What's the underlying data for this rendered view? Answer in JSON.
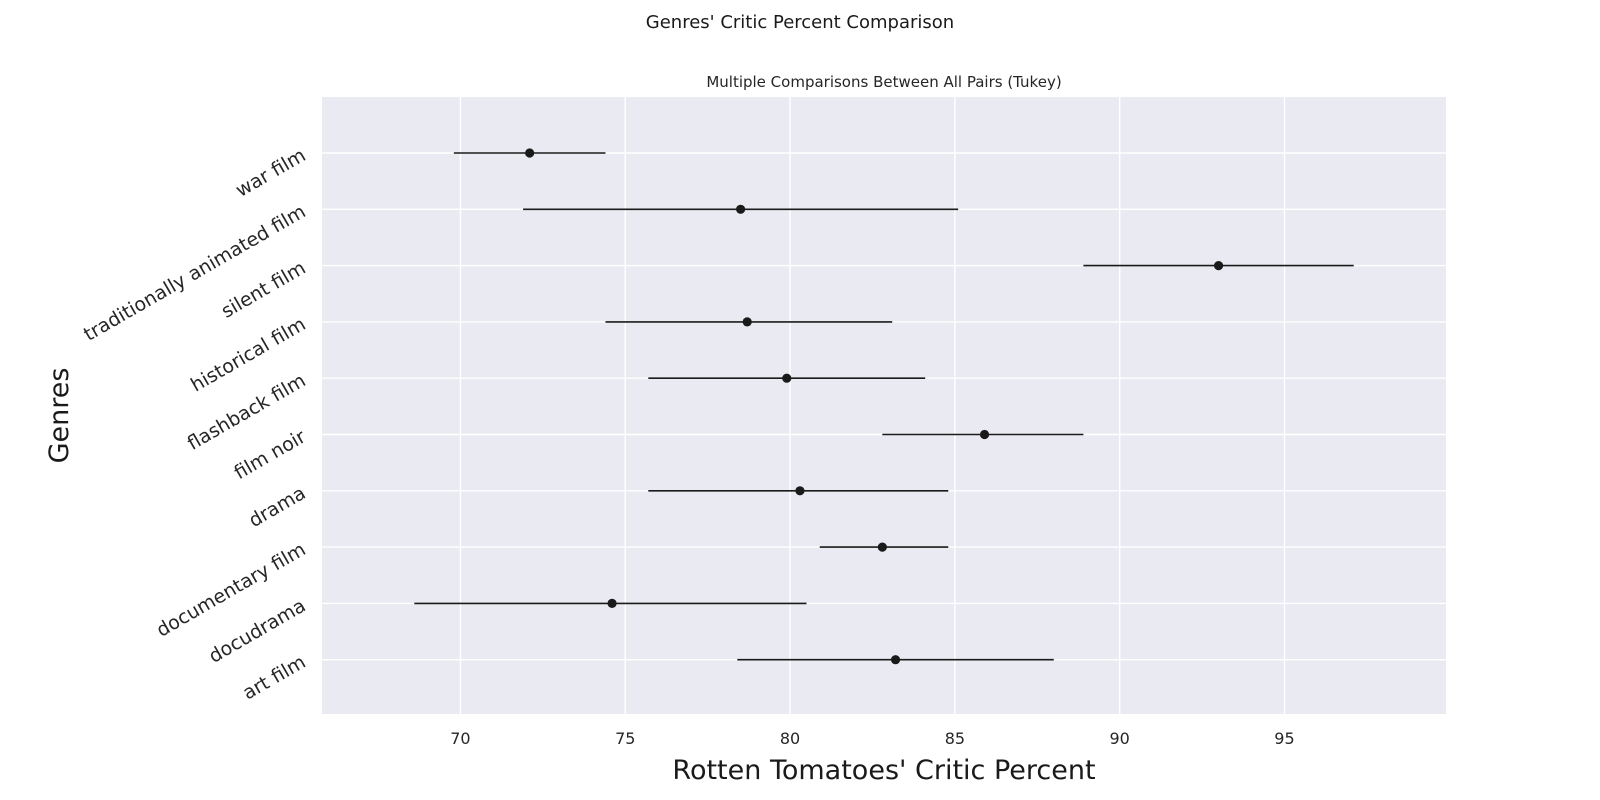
{
  "figure": {
    "suptitle": "Genres' Critic Percent Comparison"
  },
  "chart_data": {
    "type": "scatter",
    "subtype": "interval-plot",
    "title": "Multiple Comparisons Between All Pairs (Tukey)",
    "xlabel": "Rotten Tomatoes' Critic Percent",
    "ylabel": "Genres",
    "xlim": [
      65.8,
      99.9
    ],
    "x_ticks": [
      70,
      75,
      80,
      85,
      90,
      95
    ],
    "grid": true,
    "background_color": "#eaeaf2",
    "grid_color": "#ffffff",
    "marker_color": "#1a1a1a",
    "categories": [
      "war film",
      "traditionally animated film",
      "silent film",
      "historical film",
      "flashback film",
      "film noir",
      "drama",
      "documentary film",
      "docudrama",
      "art film"
    ],
    "means": [
      72.1,
      78.5,
      93.0,
      78.7,
      79.9,
      85.9,
      80.3,
      82.8,
      74.6,
      83.2
    ],
    "lower": [
      69.8,
      71.9,
      88.9,
      74.4,
      75.7,
      82.8,
      75.7,
      80.9,
      68.6,
      78.4
    ],
    "upper": [
      74.4,
      85.1,
      97.1,
      83.1,
      84.1,
      88.9,
      84.8,
      84.8,
      80.5,
      88.0
    ]
  }
}
